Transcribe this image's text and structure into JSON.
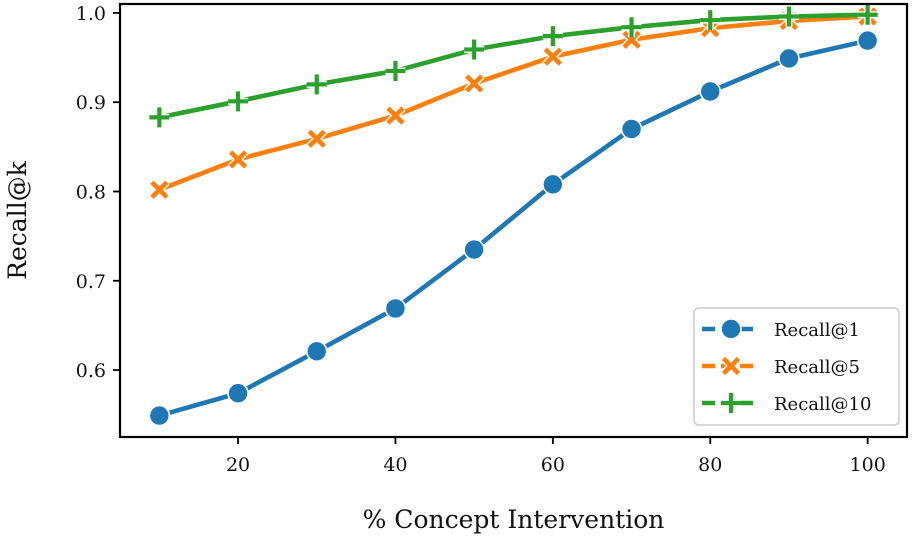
{
  "chart_data": {
    "type": "line",
    "title": "",
    "xlabel": "% Concept Intervention",
    "ylabel": "Recall@k",
    "x": [
      10,
      20,
      30,
      40,
      50,
      60,
      70,
      80,
      90,
      100
    ],
    "xlim": [
      5,
      105
    ],
    "ylim": [
      0.525,
      1.01
    ],
    "xticks": [
      20,
      40,
      60,
      80,
      100
    ],
    "yticks": [
      0.6,
      0.7,
      0.8,
      0.9,
      1.0
    ],
    "xtick_labels": [
      "20",
      "40",
      "60",
      "80",
      "100"
    ],
    "ytick_labels": [
      "0.6",
      "0.7",
      "0.8",
      "0.9",
      "1.0"
    ],
    "grid": false,
    "legend_position": "bottom-right",
    "series": [
      {
        "name": "Recall@1",
        "color": "#1f77b4",
        "marker": "circle",
        "values": [
          0.549,
          0.574,
          0.621,
          0.669,
          0.735,
          0.808,
          0.87,
          0.912,
          0.949,
          0.969
        ]
      },
      {
        "name": "Recall@5",
        "color": "#ff7f0e",
        "marker": "x",
        "values": [
          0.802,
          0.836,
          0.859,
          0.885,
          0.921,
          0.951,
          0.97,
          0.983,
          0.991,
          0.996
        ]
      },
      {
        "name": "Recall@10",
        "color": "#2ca02c",
        "marker": "plus",
        "values": [
          0.883,
          0.901,
          0.92,
          0.935,
          0.959,
          0.974,
          0.984,
          0.992,
          0.996,
          0.998
        ]
      }
    ]
  }
}
